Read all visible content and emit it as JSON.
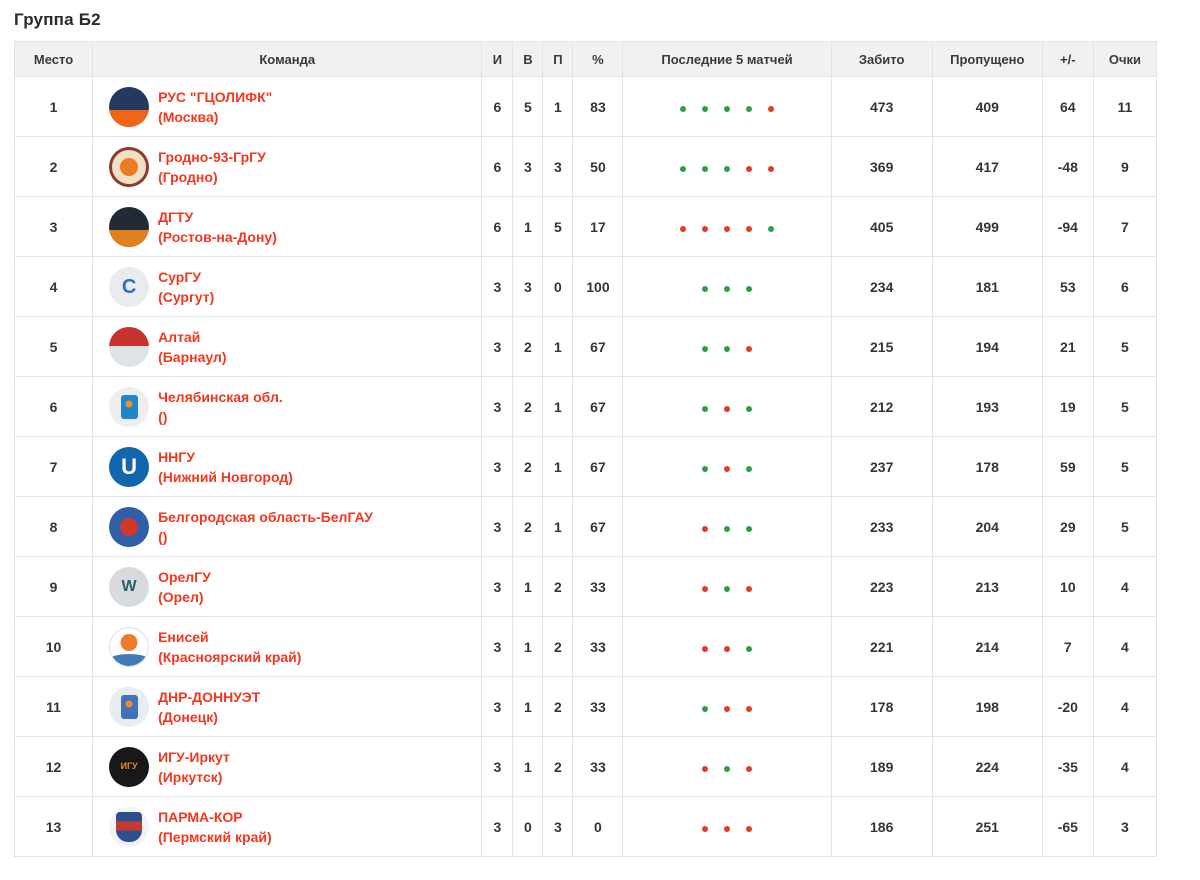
{
  "page": {
    "title": "Группа Б2"
  },
  "colors": {
    "team_link": "#f2371f",
    "win_dot": "#2f9e44",
    "loss_dot": "#e8392b",
    "header_bg": "#f1f1f1",
    "border": "#e3e3e3",
    "text": "#30363c"
  },
  "table": {
    "headers": {
      "place": "Место",
      "team": "Команда",
      "games": "И",
      "wins": "В",
      "losses": "П",
      "pct": "%",
      "last5": "Последние 5 матчей",
      "scored": "Забито",
      "conceded": "Пропущено",
      "diff": "+/-",
      "points": "Очки"
    },
    "rows": [
      {
        "place": 1,
        "name": "РУС \"ГЦОЛИФК\"",
        "city": "(Москва)",
        "games": 6,
        "wins": 5,
        "losses": 1,
        "pct": 83,
        "last5": [
          "W",
          "W",
          "W",
          "W",
          "L"
        ],
        "scored": 473,
        "conceded": 409,
        "diff": 64,
        "points": 11,
        "logo": {
          "style": "half",
          "bg": "#233a60",
          "fg": "#f26418"
        }
      },
      {
        "place": 2,
        "name": "Гродно-93-ГрГУ",
        "city": "(Гродно)",
        "games": 6,
        "wins": 3,
        "losses": 3,
        "pct": 50,
        "last5": [
          "W",
          "W",
          "W",
          "L",
          "L"
        ],
        "scored": 369,
        "conceded": 417,
        "diff": -48,
        "points": 9,
        "logo": {
          "style": "ball",
          "bg": "#efe0c8",
          "fg": "#ea7c22",
          "ring": "#8e3a30"
        }
      },
      {
        "place": 3,
        "name": "ДГТУ",
        "city": "(Ростов-на-Дону)",
        "games": 6,
        "wins": 1,
        "losses": 5,
        "pct": 17,
        "last5": [
          "L",
          "L",
          "L",
          "L",
          "W"
        ],
        "scored": 405,
        "conceded": 499,
        "diff": -94,
        "points": 7,
        "logo": {
          "style": "half",
          "bg": "#222b35",
          "fg": "#e2801f"
        }
      },
      {
        "place": 4,
        "name": "СурГУ",
        "city": "(Сургут)",
        "games": 3,
        "wins": 3,
        "losses": 0,
        "pct": 100,
        "last5": [
          "W",
          "W",
          "W"
        ],
        "scored": 234,
        "conceded": 181,
        "diff": 53,
        "points": 6,
        "logo": {
          "style": "letter",
          "bg": "#e9ebed",
          "fg": "#2a71c2",
          "glyph": "C",
          "size": 20
        }
      },
      {
        "place": 5,
        "name": "Алтай",
        "city": "(Барнаул)",
        "games": 3,
        "wins": 2,
        "losses": 1,
        "pct": 67,
        "last5": [
          "W",
          "W",
          "L"
        ],
        "scored": 215,
        "conceded": 194,
        "diff": 21,
        "points": 5,
        "logo": {
          "style": "half-top",
          "bg": "#dfe3e8",
          "fg": "#c5332f"
        }
      },
      {
        "place": 6,
        "name": "Челябинская обл.",
        "city": "()",
        "games": 3,
        "wins": 2,
        "losses": 1,
        "pct": 67,
        "last5": [
          "W",
          "L",
          "W"
        ],
        "scored": 212,
        "conceded": 193,
        "diff": 19,
        "points": 5,
        "logo": {
          "style": "rect",
          "bg": "#eceef0",
          "fg": "#1f86c9",
          "dot": "#f09024"
        }
      },
      {
        "place": 7,
        "name": "ННГУ",
        "city": "(Нижний Новгород)",
        "games": 3,
        "wins": 2,
        "losses": 1,
        "pct": 67,
        "last5": [
          "W",
          "L",
          "W"
        ],
        "scored": 237,
        "conceded": 178,
        "diff": 59,
        "points": 5,
        "logo": {
          "style": "letter",
          "bg": "#1266ae",
          "fg": "#ffffff",
          "glyph": "U",
          "size": 22
        }
      },
      {
        "place": 8,
        "name": "Белгородская область-БелГАУ",
        "city": "()",
        "games": 3,
        "wins": 2,
        "losses": 1,
        "pct": 67,
        "last5": [
          "L",
          "W",
          "W"
        ],
        "scored": 233,
        "conceded": 204,
        "diff": 29,
        "points": 5,
        "logo": {
          "style": "ball",
          "bg": "#2e5fa7",
          "fg": "#d2372c"
        }
      },
      {
        "place": 9,
        "name": "ОрелГУ",
        "city": "(Орел)",
        "games": 3,
        "wins": 1,
        "losses": 2,
        "pct": 33,
        "last5": [
          "L",
          "W",
          "L"
        ],
        "scored": 223,
        "conceded": 213,
        "diff": 10,
        "points": 4,
        "logo": {
          "style": "letter",
          "bg": "#d8dbdd",
          "fg": "#2a5f68",
          "glyph": "W",
          "size": 16
        }
      },
      {
        "place": 10,
        "name": "Енисей",
        "city": "(Красноярский край)",
        "games": 3,
        "wins": 1,
        "losses": 2,
        "pct": 33,
        "last5": [
          "L",
          "L",
          "W"
        ],
        "scored": 221,
        "conceded": 214,
        "diff": 7,
        "points": 4,
        "logo": {
          "style": "ballwave",
          "bg": "#ffffff",
          "fg": "#ec7c28",
          "wave": "#3f7cb8",
          "border": "#dddddd"
        }
      },
      {
        "place": 11,
        "name": "ДНР-ДОННУЭТ",
        "city": "(Донецк)",
        "games": 3,
        "wins": 1,
        "losses": 2,
        "pct": 33,
        "last5": [
          "W",
          "L",
          "L"
        ],
        "scored": 178,
        "conceded": 198,
        "diff": -20,
        "points": 4,
        "logo": {
          "style": "rect",
          "bg": "#e9ecf1",
          "fg": "#4472b8",
          "dot": "#ef8b2a"
        }
      },
      {
        "place": 12,
        "name": "ИГУ-Иркут",
        "city": "(Иркутск)",
        "games": 3,
        "wins": 1,
        "losses": 2,
        "pct": 33,
        "last5": [
          "L",
          "W",
          "L"
        ],
        "scored": 189,
        "conceded": 224,
        "diff": -35,
        "points": 4,
        "logo": {
          "style": "letter",
          "bg": "#17181a",
          "fg": "#f0891d",
          "glyph": "ИГУ",
          "size": 9
        }
      },
      {
        "place": 13,
        "name": "ПАРМА-КОР",
        "city": "(Пермский край)",
        "games": 3,
        "wins": 0,
        "losses": 3,
        "pct": 0,
        "last5": [
          "L",
          "L",
          "L"
        ],
        "scored": 186,
        "conceded": 251,
        "diff": -65,
        "points": 3,
        "logo": {
          "style": "shield",
          "bg": "#f2f3f4",
          "fg": "#2d4f90",
          "mid": "#c83a2e"
        }
      }
    ]
  }
}
